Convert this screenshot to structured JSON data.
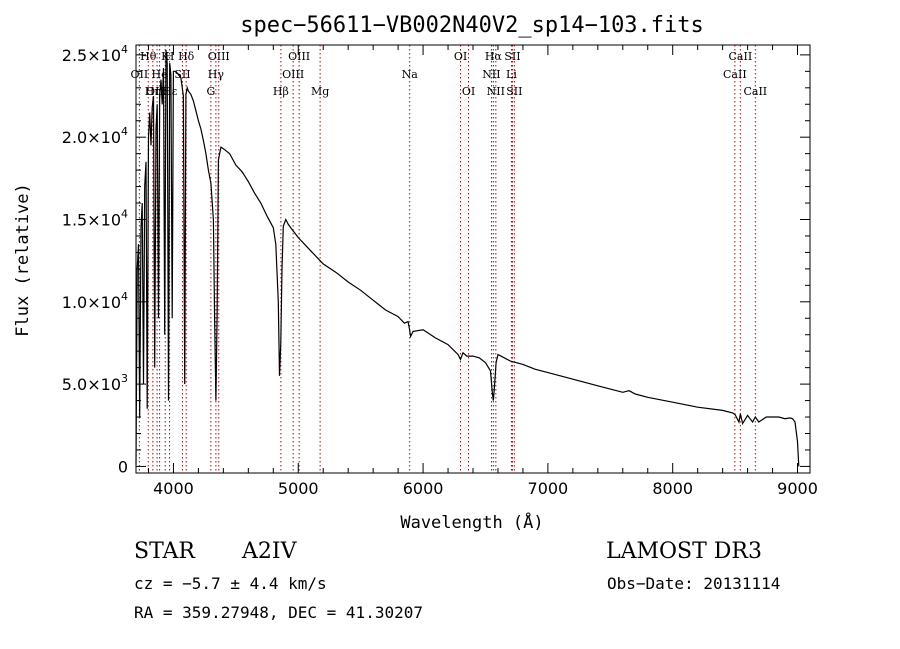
{
  "chart_data": {
    "type": "line",
    "title": "spec−56611−VB002N40V2_sp14−103.fits",
    "xlabel": "Wavelength (Å)",
    "ylabel": "Flux (relative)",
    "xlim": [
      3700,
      9100
    ],
    "ylim": [
      -400,
      25600
    ],
    "x_ticks": [
      {
        "value": 4000,
        "label": "4000"
      },
      {
        "value": 5000,
        "label": "5000"
      },
      {
        "value": 6000,
        "label": "6000"
      },
      {
        "value": 7000,
        "label": "7000"
      },
      {
        "value": 8000,
        "label": "8000"
      },
      {
        "value": 9000,
        "label": "9000"
      }
    ],
    "y_ticks": [
      {
        "value": 0,
        "mantissa": "0",
        "exponent": ""
      },
      {
        "value": 5000,
        "mantissa": "5.0×10",
        "exponent": "3"
      },
      {
        "value": 10000,
        "mantissa": "1.0×10",
        "exponent": "4"
      },
      {
        "value": 15000,
        "mantissa": "1.5×10",
        "exponent": "4"
      },
      {
        "value": 20000,
        "mantissa": "2.0×10",
        "exponent": "4"
      },
      {
        "value": 25000,
        "mantissa": "2.5×10",
        "exponent": "4"
      }
    ],
    "spectrum": {
      "wavelength": [
        3700,
        3710,
        3720,
        3730,
        3740,
        3750,
        3760,
        3770,
        3780,
        3790,
        3800,
        3810,
        3820,
        3830,
        3840,
        3850,
        3860,
        3870,
        3880,
        3890,
        3900,
        3910,
        3920,
        3930,
        3940,
        3950,
        3960,
        3970,
        3980,
        3990,
        4000,
        4020,
        4040,
        4060,
        4080,
        4090,
        4100,
        4110,
        4120,
        4140,
        4160,
        4180,
        4200,
        4220,
        4240,
        4260,
        4280,
        4300,
        4320,
        4330,
        4340,
        4350,
        4360,
        4380,
        4400,
        4450,
        4500,
        4550,
        4600,
        4650,
        4700,
        4750,
        4800,
        4820,
        4840,
        4850,
        4860,
        4870,
        4880,
        4900,
        4920,
        4950,
        5000,
        5050,
        5100,
        5150,
        5200,
        5300,
        5400,
        5500,
        5600,
        5700,
        5800,
        5850,
        5880,
        5890,
        5900,
        5920,
        6000,
        6100,
        6200,
        6280,
        6300,
        6320,
        6350,
        6400,
        6450,
        6500,
        6540,
        6555,
        6563,
        6570,
        6585,
        6600,
        6650,
        6700,
        6800,
        6900,
        7000,
        7200,
        7400,
        7600,
        7650,
        7700,
        7800,
        8000,
        8200,
        8400,
        8480,
        8500,
        8530,
        8542,
        8560,
        8600,
        8640,
        8662,
        8690,
        8750,
        8800,
        8850,
        8900,
        8940,
        8960,
        8980,
        9000,
        9010
      ],
      "flux": [
        100,
        12000,
        13500,
        3000,
        14500,
        16000,
        5000,
        17000,
        18500,
        3500,
        20000,
        21500,
        19500,
        21800,
        22500,
        6000,
        20500,
        22000,
        9000,
        22500,
        23500,
        22000,
        24200,
        8000,
        25300,
        24500,
        4000,
        24500,
        23800,
        9000,
        24000,
        24000,
        23800,
        23600,
        22500,
        5000,
        22600,
        23000,
        22800,
        22600,
        22200,
        21600,
        21000,
        20500,
        19800,
        19000,
        18000,
        17200,
        15000,
        9000,
        4000,
        9000,
        18600,
        19400,
        19300,
        19000,
        18300,
        17900,
        17300,
        16600,
        16000,
        15200,
        14500,
        13500,
        10000,
        5500,
        7500,
        12000,
        14600,
        15000,
        14700,
        14400,
        13900,
        13500,
        13100,
        12700,
        12300,
        11800,
        11200,
        10700,
        10100,
        9500,
        9100,
        8700,
        8800,
        8400,
        7900,
        8200,
        8300,
        7800,
        7400,
        6800,
        6500,
        6900,
        6700,
        6700,
        6600,
        6300,
        5800,
        4500,
        4000,
        4600,
        6300,
        6800,
        6600,
        6400,
        6200,
        5900,
        5700,
        5300,
        4900,
        4500,
        4600,
        4400,
        4200,
        3900,
        3600,
        3400,
        3250,
        3150,
        2700,
        3200,
        2600,
        3100,
        2700,
        3000,
        2700,
        3000,
        3000,
        3000,
        2900,
        2950,
        2900,
        2700,
        1500,
        0
      ]
    },
    "spectral_lines": [
      {
        "label": "Hθ",
        "wavelength": 3798,
        "row": 1,
        "offset": 0
      },
      {
        "label": "OII",
        "wavelength": 3727,
        "row": 2,
        "offset": 0
      },
      {
        "label": "He",
        "wavelength": 3889,
        "row": 2,
        "offset": 0
      },
      {
        "label": "OIII",
        "wavelength": 3869,
        "row": 3,
        "offset": 0
      },
      {
        "label": "Hη",
        "wavelength": 3835,
        "row": 3,
        "offset": 0
      },
      {
        "label": "K",
        "wavelength": 3934,
        "row": 1,
        "offset": 0
      },
      {
        "label": "H",
        "wavelength": 3969,
        "row": 1,
        "offset": 0
      },
      {
        "label": "Hδ",
        "wavelength": 4102,
        "row": 1,
        "offset": 0
      },
      {
        "label": "SII",
        "wavelength": 4072,
        "row": 2,
        "offset": 0
      },
      {
        "label": "Hε",
        "wavelength": 3970,
        "row": 3,
        "offset": 0
      },
      {
        "label": "OIII",
        "wavelength": 4363,
        "row": 1,
        "offset": 0
      },
      {
        "label": "Hγ",
        "wavelength": 4340,
        "row": 2,
        "offset": 0
      },
      {
        "label": "G",
        "wavelength": 4300,
        "row": 3,
        "offset": 0
      },
      {
        "label": "OIII",
        "wavelength": 5007,
        "row": 1,
        "offset": 0
      },
      {
        "label": "OIII",
        "wavelength": 4959,
        "row": 2,
        "offset": 0
      },
      {
        "label": "Hβ",
        "wavelength": 4861,
        "row": 3,
        "offset": 0
      },
      {
        "label": "Mg",
        "wavelength": 5175,
        "row": 3,
        "offset": 0
      },
      {
        "label": "Na",
        "wavelength": 5893,
        "row": 2,
        "offset": 0
      },
      {
        "label": "OI",
        "wavelength": 6300,
        "row": 1,
        "offset": 0
      },
      {
        "label": "OI",
        "wavelength": 6364,
        "row": 3,
        "offset": 0
      },
      {
        "label": "Hα",
        "wavelength": 6563,
        "row": 1,
        "offset": 0
      },
      {
        "label": "SII",
        "wavelength": 6716,
        "row": 1,
        "offset": 0
      },
      {
        "label": "NII",
        "wavelength": 6548,
        "row": 2,
        "offset": 0
      },
      {
        "label": "Li",
        "wavelength": 6708,
        "row": 2,
        "offset": 0
      },
      {
        "label": "NII",
        "wavelength": 6583,
        "row": 3,
        "offset": 0
      },
      {
        "label": "SII",
        "wavelength": 6731,
        "row": 3,
        "offset": 0
      },
      {
        "label": "CaII",
        "wavelength": 8542,
        "row": 1,
        "offset": 0
      },
      {
        "label": "CaII",
        "wavelength": 8498,
        "row": 2,
        "offset": 0
      },
      {
        "label": "CaII",
        "wavelength": 8662,
        "row": 3,
        "offset": 0
      }
    ],
    "line_color": "#c00000",
    "spectrum_color": "#000000"
  },
  "info": {
    "object_class": "STAR",
    "subclass": "A2IV",
    "survey": "LAMOST DR3",
    "redshift_text": "cz = −5.7 ± 4.4 km/s",
    "obs_date": "Obs−Date: 20131114",
    "coords": "RA = 359.27948, DEC =  41.30207"
  }
}
